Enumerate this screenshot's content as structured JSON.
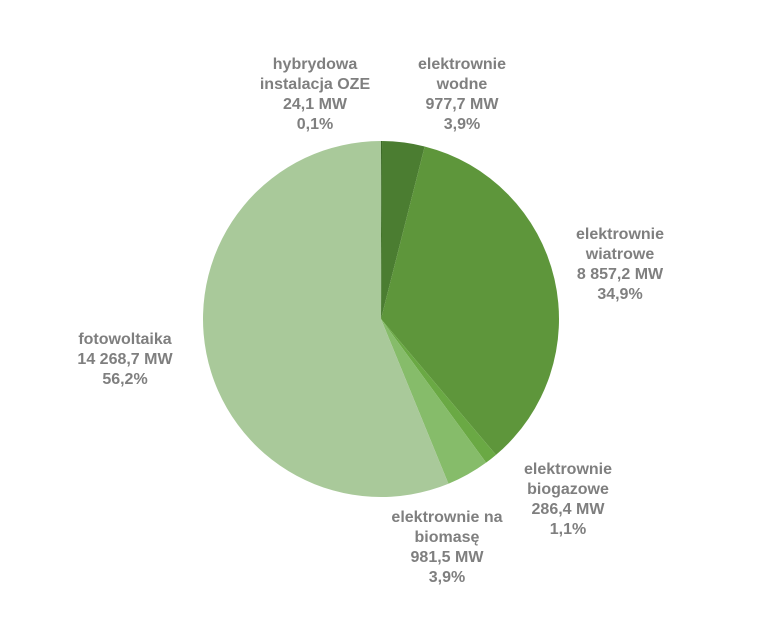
{
  "chart_data": {
    "type": "pie",
    "categories": [
      "hybrydowa instalacja OZE",
      "elektrownie wodne",
      "elektrownie wiatrowe",
      "elektrownie biogazowe",
      "elektrownie na biomasę",
      "fotowoltaika"
    ],
    "values": [
      24.1,
      977.7,
      8857.2,
      286.4,
      981.5,
      14268.7
    ],
    "value_labels": [
      "24,1 MW",
      "977,7 MW",
      "8 857,2 MW",
      "286,4 MW",
      "981,5 MW",
      "14 268,7 MW"
    ],
    "percentages": [
      0.1,
      3.9,
      34.9,
      1.1,
      3.9,
      56.2
    ],
    "percentage_labels": [
      "0,1%",
      "3,9%",
      "34,9%",
      "1,1%",
      "3,9%",
      "56,2%"
    ],
    "colors": [
      "#3d6a28",
      "#4b7d31",
      "#5e963b",
      "#6aa944",
      "#86bc6a",
      "#a9c99a"
    ]
  }
}
